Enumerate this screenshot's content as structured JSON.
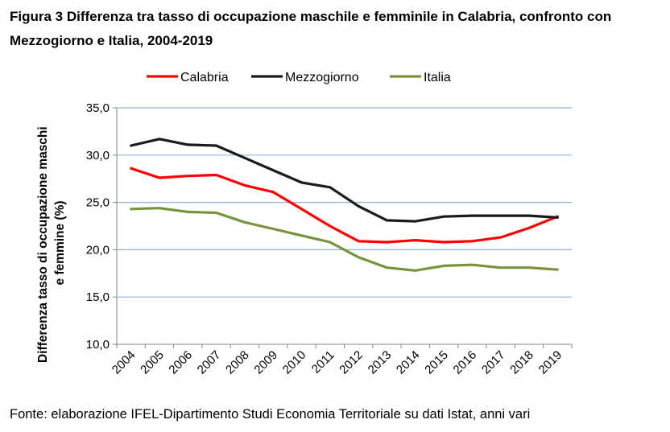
{
  "title": "Figura 3 Differenza tra tasso di occupazione maschile e femminile in Calabria, confronto con Mezzogiorno e Italia, 2004-2019",
  "source": "Fonte: elaborazione IFEL-Dipartimento Studi Economia Territoriale su dati Istat, anni vari",
  "chart_data": {
    "type": "line",
    "x": [
      "2004",
      "2005",
      "2006",
      "2007",
      "2008",
      "2009",
      "2010",
      "2011",
      "2012",
      "2013",
      "2014",
      "2015",
      "2016",
      "2017",
      "2018",
      "2019"
    ],
    "series": [
      {
        "name": "Calabria",
        "color": "#ff0000",
        "values": [
          28.6,
          27.6,
          27.8,
          27.9,
          26.8,
          26.1,
          24.3,
          22.5,
          20.9,
          20.8,
          21.0,
          20.8,
          20.9,
          21.3,
          22.3,
          23.5
        ]
      },
      {
        "name": "Mezzogiorno",
        "color": "#1a1a1a",
        "values": [
          31.0,
          31.7,
          31.1,
          31.0,
          29.7,
          28.4,
          27.1,
          26.6,
          24.6,
          23.1,
          23.0,
          23.5,
          23.6,
          23.6,
          23.6,
          23.4
        ]
      },
      {
        "name": "Italia",
        "color": "#77933c",
        "values": [
          24.3,
          24.4,
          24.0,
          23.9,
          22.9,
          22.2,
          21.5,
          20.8,
          19.2,
          18.1,
          17.8,
          18.3,
          18.4,
          18.1,
          18.1,
          17.9
        ]
      }
    ],
    "ylabel": "Differenza tasso di occupazione maschi e femmine (%)",
    "ylim": [
      10.0,
      35.0
    ],
    "yticks": [
      "10,0",
      "15,0",
      "20,0",
      "25,0",
      "30,0",
      "35,0"
    ],
    "grid": true,
    "legend": "top"
  }
}
